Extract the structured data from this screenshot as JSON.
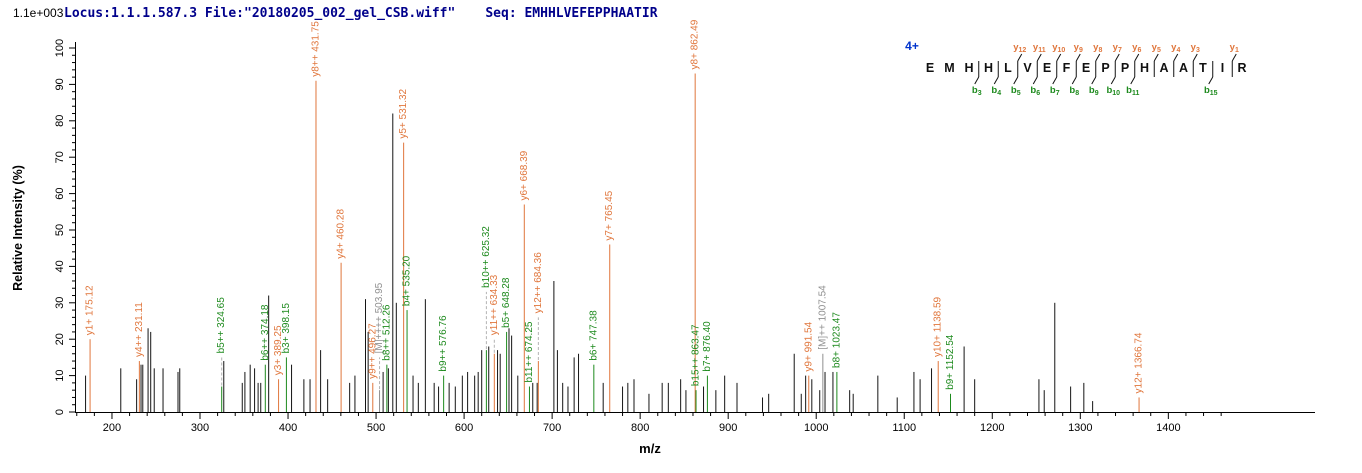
{
  "header": {
    "locus_file": "Locus:1.1.1.587.3 File:\"20180205_002_gel_CSB.wiff\"",
    "seq": "Seq: EMHHLVEFEPPHAATIR"
  },
  "colors": {
    "y_ion": "#e0763c",
    "b_ion": "#1d8a1d",
    "precursor": "#8f8f8f",
    "peak": "#141414",
    "header_text": "#00008b",
    "charge": "#0033cc",
    "axis": "#000000",
    "leader": "#b3b3b3"
  },
  "sequence_panel": {
    "charge_label": "4+",
    "residues": [
      "E",
      "M",
      "H",
      "H",
      "L",
      "V",
      "E",
      "F",
      "E",
      "P",
      "P",
      "H",
      "A",
      "A",
      "T",
      "I",
      "R"
    ],
    "cleavages": [
      {
        "after": 3,
        "b": "b3"
      },
      {
        "after": 4,
        "b": "b4"
      },
      {
        "after": 5,
        "b": "b5",
        "y": "y12"
      },
      {
        "after": 6,
        "b": "b6",
        "y": "y11"
      },
      {
        "after": 7,
        "b": "b7",
        "y": "y10"
      },
      {
        "after": 8,
        "b": "b8",
        "y": "y9"
      },
      {
        "after": 9,
        "b": "b9",
        "y": "y8"
      },
      {
        "after": 10,
        "b": "b10",
        "y": "y7"
      },
      {
        "after": 11,
        "b": "b11",
        "y": "y6"
      },
      {
        "after": 12,
        "y": "y5"
      },
      {
        "after": 13,
        "y": "y4"
      },
      {
        "after": 14,
        "y": "y3"
      },
      {
        "after": 15,
        "b": "b15"
      },
      {
        "after": 16,
        "y": "y1"
      }
    ]
  },
  "chart_data": {
    "type": "bar",
    "subtype": "ms2-fragment-spectrum",
    "xlabel": "m/z",
    "ylabel": "Relative Intensity (%)",
    "intensity_scale_label": "1.1e+003",
    "xlim": [
      158,
      1478
    ],
    "ylim": [
      0,
      100
    ],
    "x_major_tick_step": 100,
    "x_minor_tick_step": 20,
    "x_tick_start": 200,
    "x_tick_end": 1400,
    "y_major_tick_step": 10,
    "y_minor_tick_step": 2,
    "grid": false,
    "legend": "none",
    "peaks": [
      {
        "mz": 170,
        "intensity": 10,
        "series": "peak"
      },
      {
        "mz": 175.12,
        "intensity": 20,
        "series": "y",
        "label": "y1+ 175.12"
      },
      {
        "mz": 210,
        "intensity": 12,
        "series": "peak"
      },
      {
        "mz": 228,
        "intensity": 9,
        "series": "peak"
      },
      {
        "mz": 231.11,
        "intensity": 14,
        "series": "y",
        "label": "y4++ 231.11"
      },
      {
        "mz": 233,
        "intensity": 13,
        "series": "peak"
      },
      {
        "mz": 235,
        "intensity": 13,
        "series": "peak"
      },
      {
        "mz": 241,
        "intensity": 23,
        "series": "peak"
      },
      {
        "mz": 244,
        "intensity": 22,
        "series": "peak"
      },
      {
        "mz": 248,
        "intensity": 12,
        "series": "peak"
      },
      {
        "mz": 258,
        "intensity": 12,
        "series": "peak"
      },
      {
        "mz": 275,
        "intensity": 11,
        "series": "peak"
      },
      {
        "mz": 277,
        "intensity": 12,
        "series": "peak"
      },
      {
        "mz": 324.65,
        "intensity": 7,
        "series": "b",
        "label": "b5++ 324.65",
        "label_lift": 15
      },
      {
        "mz": 327,
        "intensity": 14,
        "series": "peak"
      },
      {
        "mz": 348,
        "intensity": 8,
        "series": "peak"
      },
      {
        "mz": 351,
        "intensity": 11,
        "series": "peak"
      },
      {
        "mz": 357,
        "intensity": 13,
        "series": "peak"
      },
      {
        "mz": 362,
        "intensity": 12,
        "series": "peak"
      },
      {
        "mz": 366,
        "intensity": 8,
        "series": "peak"
      },
      {
        "mz": 369,
        "intensity": 8,
        "series": "peak"
      },
      {
        "mz": 374.18,
        "intensity": 13,
        "series": "b",
        "label": "b6++ 374.18"
      },
      {
        "mz": 378,
        "intensity": 32,
        "series": "peak"
      },
      {
        "mz": 389.25,
        "intensity": 9,
        "series": "y",
        "label": "y3+ 389.25"
      },
      {
        "mz": 398.15,
        "intensity": 15,
        "series": "b",
        "label": "b3+ 398.15"
      },
      {
        "mz": 404,
        "intensity": 13,
        "series": "peak"
      },
      {
        "mz": 418,
        "intensity": 9,
        "series": "peak"
      },
      {
        "mz": 425,
        "intensity": 9,
        "series": "peak"
      },
      {
        "mz": 431.75,
        "intensity": 91,
        "series": "y",
        "label": "y8++ 431.75"
      },
      {
        "mz": 437,
        "intensity": 17,
        "series": "peak"
      },
      {
        "mz": 445,
        "intensity": 9,
        "series": "peak"
      },
      {
        "mz": 460.28,
        "intensity": 41,
        "series": "y",
        "label": "y4+ 460.28"
      },
      {
        "mz": 470,
        "intensity": 8,
        "series": "peak"
      },
      {
        "mz": 476,
        "intensity": 10,
        "series": "peak"
      },
      {
        "mz": 488,
        "intensity": 31,
        "series": "peak"
      },
      {
        "mz": 491,
        "intensity": 22,
        "series": "peak"
      },
      {
        "mz": 496.27,
        "intensity": 8,
        "series": "y",
        "label": "y9++ 496.27"
      },
      {
        "mz": 503.95,
        "intensity": 6,
        "series": "precursor",
        "label": "[M]++++ 503.95",
        "label_lift": 15
      },
      {
        "mz": 508,
        "intensity": 11,
        "series": "peak"
      },
      {
        "mz": 512.26,
        "intensity": 13,
        "series": "b",
        "label": "b8++ 512.26"
      },
      {
        "mz": 514,
        "intensity": 12,
        "series": "peak"
      },
      {
        "mz": 519,
        "intensity": 82,
        "series": "peak"
      },
      {
        "mz": 523,
        "intensity": 30,
        "series": "peak"
      },
      {
        "mz": 531.32,
        "intensity": 74,
        "series": "y",
        "label": "y5+ 531.32"
      },
      {
        "mz": 535.2,
        "intensity": 28,
        "series": "b",
        "label": "b4+ 535.20"
      },
      {
        "mz": 542,
        "intensity": 10,
        "series": "peak"
      },
      {
        "mz": 548,
        "intensity": 8,
        "series": "peak"
      },
      {
        "mz": 556,
        "intensity": 31,
        "series": "peak"
      },
      {
        "mz": 566,
        "intensity": 8,
        "series": "peak"
      },
      {
        "mz": 571,
        "intensity": 7,
        "series": "peak"
      },
      {
        "mz": 576.76,
        "intensity": 10,
        "series": "b",
        "label": "b9++ 576.76"
      },
      {
        "mz": 583,
        "intensity": 8,
        "series": "peak"
      },
      {
        "mz": 590,
        "intensity": 7,
        "series": "peak"
      },
      {
        "mz": 598,
        "intensity": 10,
        "series": "peak"
      },
      {
        "mz": 604,
        "intensity": 11,
        "series": "peak"
      },
      {
        "mz": 612,
        "intensity": 10,
        "series": "peak"
      },
      {
        "mz": 616,
        "intensity": 11,
        "series": "peak"
      },
      {
        "mz": 620,
        "intensity": 17,
        "series": "peak"
      },
      {
        "mz": 625.32,
        "intensity": 17,
        "series": "b",
        "label": "b10++ 625.32",
        "label_lift": 33
      },
      {
        "mz": 628,
        "intensity": 18,
        "series": "peak"
      },
      {
        "mz": 634.33,
        "intensity": 16,
        "series": "y",
        "label": "y11++ 634.33",
        "label_lift": 20
      },
      {
        "mz": 638,
        "intensity": 17,
        "series": "peak"
      },
      {
        "mz": 641,
        "intensity": 16,
        "series": "peak"
      },
      {
        "mz": 648.28,
        "intensity": 22,
        "series": "b",
        "label": "b5+ 648.28"
      },
      {
        "mz": 651,
        "intensity": 23,
        "series": "peak"
      },
      {
        "mz": 654,
        "intensity": 21,
        "series": "peak"
      },
      {
        "mz": 661,
        "intensity": 10,
        "series": "peak"
      },
      {
        "mz": 668.39,
        "intensity": 57,
        "series": "y",
        "label": "y6+ 668.39"
      },
      {
        "mz": 674.25,
        "intensity": 7,
        "series": "b",
        "label": "b11++ 674.25"
      },
      {
        "mz": 678,
        "intensity": 8,
        "series": "peak"
      },
      {
        "mz": 683,
        "intensity": 8,
        "series": "peak"
      },
      {
        "mz": 684.36,
        "intensity": 14,
        "series": "y",
        "label": "y12++ 684.36",
        "label_lift": 26
      },
      {
        "mz": 702,
        "intensity": 36,
        "series": "peak"
      },
      {
        "mz": 706,
        "intensity": 17,
        "series": "peak"
      },
      {
        "mz": 712,
        "intensity": 8,
        "series": "peak"
      },
      {
        "mz": 718,
        "intensity": 7,
        "series": "peak"
      },
      {
        "mz": 725,
        "intensity": 15,
        "series": "peak"
      },
      {
        "mz": 730,
        "intensity": 16,
        "series": "peak"
      },
      {
        "mz": 747.38,
        "intensity": 13,
        "series": "b",
        "label": "b6+ 747.38"
      },
      {
        "mz": 758,
        "intensity": 8,
        "series": "peak"
      },
      {
        "mz": 765.45,
        "intensity": 46,
        "series": "y",
        "label": "y7+ 765.45"
      },
      {
        "mz": 780,
        "intensity": 7,
        "series": "peak"
      },
      {
        "mz": 786,
        "intensity": 8,
        "series": "peak"
      },
      {
        "mz": 793,
        "intensity": 9,
        "series": "peak"
      },
      {
        "mz": 810,
        "intensity": 5,
        "series": "peak"
      },
      {
        "mz": 825,
        "intensity": 8,
        "series": "peak"
      },
      {
        "mz": 832,
        "intensity": 8,
        "series": "peak"
      },
      {
        "mz": 846,
        "intensity": 9,
        "series": "peak"
      },
      {
        "mz": 852,
        "intensity": 6,
        "series": "peak"
      },
      {
        "mz": 862.49,
        "intensity": 93,
        "series": "y",
        "label": "y8+ 862.49"
      },
      {
        "mz": 863.47,
        "intensity": 6,
        "series": "b",
        "label": "b15++ 863.47"
      },
      {
        "mz": 872,
        "intensity": 7,
        "series": "peak"
      },
      {
        "mz": 876.4,
        "intensity": 10,
        "series": "b",
        "label": "b7+ 876.40"
      },
      {
        "mz": 886,
        "intensity": 6,
        "series": "peak"
      },
      {
        "mz": 896,
        "intensity": 10,
        "series": "peak"
      },
      {
        "mz": 910,
        "intensity": 8,
        "series": "peak"
      },
      {
        "mz": 939,
        "intensity": 4,
        "series": "peak"
      },
      {
        "mz": 946,
        "intensity": 5,
        "series": "peak"
      },
      {
        "mz": 975,
        "intensity": 16,
        "series": "peak"
      },
      {
        "mz": 983,
        "intensity": 5,
        "series": "peak"
      },
      {
        "mz": 988,
        "intensity": 10,
        "series": "peak"
      },
      {
        "mz": 991.54,
        "intensity": 10,
        "series": "y",
        "label": "y9+ 991.54"
      },
      {
        "mz": 995,
        "intensity": 9,
        "series": "peak"
      },
      {
        "mz": 1004,
        "intensity": 6,
        "series": "peak"
      },
      {
        "mz": 1007.54,
        "intensity": 16,
        "series": "precursor",
        "label": "[M]++ 1007.54"
      },
      {
        "mz": 1010,
        "intensity": 11,
        "series": "peak"
      },
      {
        "mz": 1019,
        "intensity": 11,
        "series": "peak"
      },
      {
        "mz": 1023.47,
        "intensity": 11,
        "series": "b",
        "label": "b8+ 1023.47"
      },
      {
        "mz": 1038,
        "intensity": 6,
        "series": "peak"
      },
      {
        "mz": 1042,
        "intensity": 5,
        "series": "peak"
      },
      {
        "mz": 1070,
        "intensity": 10,
        "series": "peak"
      },
      {
        "mz": 1092,
        "intensity": 4,
        "series": "peak"
      },
      {
        "mz": 1111,
        "intensity": 11,
        "series": "peak"
      },
      {
        "mz": 1118,
        "intensity": 9,
        "series": "peak"
      },
      {
        "mz": 1131,
        "intensity": 12,
        "series": "peak"
      },
      {
        "mz": 1138.59,
        "intensity": 14,
        "series": "y",
        "label": "y10+ 1138.59"
      },
      {
        "mz": 1152.54,
        "intensity": 5,
        "series": "b",
        "label": "b9+ 1152.54"
      },
      {
        "mz": 1168,
        "intensity": 18,
        "series": "peak"
      },
      {
        "mz": 1180,
        "intensity": 9,
        "series": "peak"
      },
      {
        "mz": 1253,
        "intensity": 9,
        "series": "peak"
      },
      {
        "mz": 1259,
        "intensity": 6,
        "series": "peak"
      },
      {
        "mz": 1271,
        "intensity": 30,
        "series": "peak"
      },
      {
        "mz": 1289,
        "intensity": 7,
        "series": "peak"
      },
      {
        "mz": 1304,
        "intensity": 8,
        "series": "peak"
      },
      {
        "mz": 1314,
        "intensity": 3,
        "series": "peak"
      },
      {
        "mz": 1366.74,
        "intensity": 4,
        "series": "y",
        "label": "y12+ 1366.74"
      }
    ]
  }
}
